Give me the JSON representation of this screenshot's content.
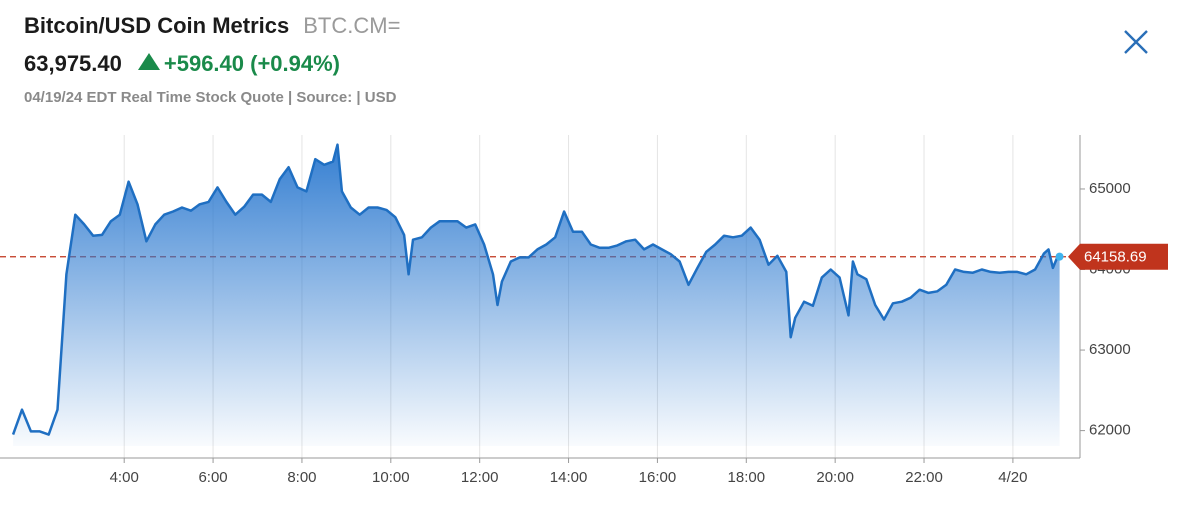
{
  "header": {
    "title": "Bitcoin/USD Coin Metrics",
    "symbol": "BTC.CM=",
    "price": "63,975.40",
    "change": "+596.40 (+0.94%)",
    "quote_info": "04/19/24 EDT Real Time Stock Quote | Source:  | USD"
  },
  "chart_data": {
    "type": "area",
    "color": "#1f6fc2",
    "grid": true,
    "x": [
      1.5,
      1.7,
      1.9,
      2.1,
      2.3,
      2.5,
      2.7,
      2.9,
      3.1,
      3.3,
      3.5,
      3.7,
      3.9,
      4.1,
      4.3,
      4.5,
      4.7,
      4.9,
      5.1,
      5.3,
      5.5,
      5.7,
      5.9,
      6.1,
      6.3,
      6.5,
      6.7,
      6.9,
      7.1,
      7.3,
      7.5,
      7.7,
      7.9,
      8.1,
      8.3,
      8.5,
      8.7,
      8.8,
      8.9,
      9.1,
      9.3,
      9.5,
      9.7,
      9.9,
      10.1,
      10.3,
      10.4,
      10.5,
      10.7,
      10.9,
      11.1,
      11.3,
      11.5,
      11.7,
      11.9,
      12.1,
      12.3,
      12.4,
      12.5,
      12.7,
      12.9,
      13.1,
      13.3,
      13.5,
      13.7,
      13.9,
      14.1,
      14.3,
      14.5,
      14.7,
      14.9,
      15.1,
      15.3,
      15.5,
      15.7,
      15.9,
      16.1,
      16.3,
      16.5,
      16.7,
      16.9,
      17.1,
      17.3,
      17.5,
      17.7,
      17.9,
      18.1,
      18.3,
      18.5,
      18.7,
      18.9,
      19.0,
      19.1,
      19.3,
      19.5,
      19.7,
      19.9,
      20.1,
      20.3,
      20.4,
      20.5,
      20.7,
      20.9,
      21.1,
      21.3,
      21.5,
      21.7,
      21.9,
      22.1,
      22.3,
      22.5,
      22.7,
      22.9,
      23.1,
      23.3,
      23.5,
      23.7,
      23.9,
      24.1,
      24.3,
      24.5,
      24.7,
      24.8,
      24.9,
      25.0,
      25.05
    ],
    "values": [
      61950,
      62260,
      61990,
      61990,
      61950,
      62260,
      63940,
      64680,
      64560,
      64420,
      64430,
      64600,
      64680,
      65090,
      64810,
      64350,
      64560,
      64680,
      64720,
      64770,
      64730,
      64810,
      64840,
      65020,
      64840,
      64680,
      64780,
      64930,
      64930,
      64840,
      65120,
      65270,
      65020,
      64970,
      65370,
      65300,
      65340,
      65550,
      64970,
      64770,
      64680,
      64770,
      64770,
      64740,
      64650,
      64430,
      63940,
      64370,
      64400,
      64520,
      64600,
      64600,
      64600,
      64520,
      64560,
      64310,
      63940,
      63560,
      63850,
      64100,
      64150,
      64150,
      64250,
      64310,
      64400,
      64720,
      64470,
      64470,
      64310,
      64270,
      64270,
      64300,
      64350,
      64370,
      64250,
      64310,
      64250,
      64190,
      64100,
      63810,
      64020,
      64220,
      64310,
      64420,
      64400,
      64420,
      64520,
      64370,
      64060,
      64170,
      63970,
      63160,
      63400,
      63600,
      63550,
      63900,
      64000,
      63900,
      63430,
      64100,
      63940,
      63880,
      63560,
      63380,
      63580,
      63600,
      63650,
      63750,
      63710,
      63730,
      63810,
      64000,
      63970,
      63960,
      64000,
      63970,
      63960,
      63970,
      63970,
      63940,
      64000,
      64200,
      64250,
      64020,
      64150,
      64160
    ],
    "reference_line": 64158.69,
    "reference_color": "#c0341d",
    "xlim": [
      1.43,
      25.51
    ],
    "ylim": [
      61660,
      65670
    ],
    "xticks": [
      {
        "value": 4,
        "label": "4:00"
      },
      {
        "value": 6,
        "label": "6:00"
      },
      {
        "value": 8,
        "label": "8:00"
      },
      {
        "value": 10,
        "label": "10:00"
      },
      {
        "value": 12,
        "label": "12:00"
      },
      {
        "value": 14,
        "label": "14:00"
      },
      {
        "value": 16,
        "label": "16:00"
      },
      {
        "value": 18,
        "label": "18:00"
      },
      {
        "value": 20,
        "label": "20:00"
      },
      {
        "value": 22,
        "label": "22:00"
      },
      {
        "value": 24,
        "label": "4/20"
      }
    ],
    "yticks": [
      62000,
      63000,
      64000,
      65000
    ]
  }
}
